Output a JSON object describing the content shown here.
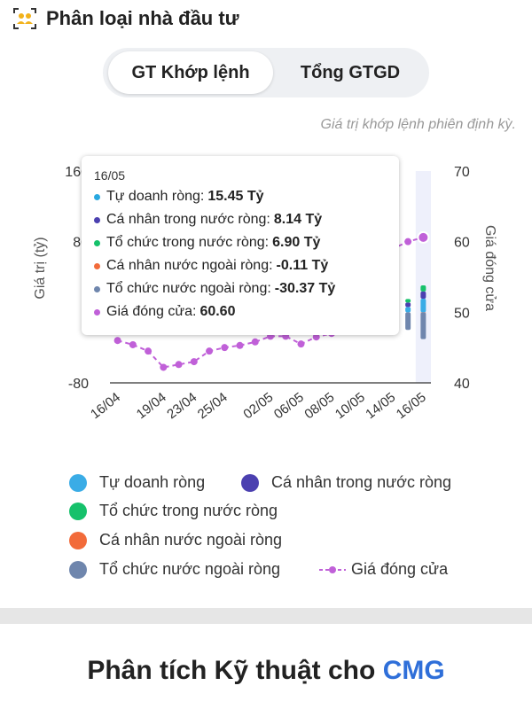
{
  "header": {
    "title": "Phân loại nhà đầu tư",
    "logo_icon": "investor-group-icon"
  },
  "tabs": [
    {
      "label": "GT Khớp lệnh",
      "active": true
    },
    {
      "label": "Tổng GTGD",
      "active": false
    }
  ],
  "subtitle": "Giá trị khớp lệnh phiên định kỳ.",
  "tooltip": {
    "date": "16/05",
    "rows": [
      {
        "label": "Tự doanh ròng:",
        "value": "15.45 Tỷ",
        "color": "#29a8e0"
      },
      {
        "label": "Cá nhân trong nước ròng:",
        "value": "8.14 Tỷ",
        "color": "#4b40b0"
      },
      {
        "label": "Tổ chức trong nước ròng:",
        "value": "6.90 Tỷ",
        "color": "#16c16b"
      },
      {
        "label": "Cá nhân nước ngoài ròng:",
        "value": "-0.11 Tỷ",
        "color": "#f26b3a"
      },
      {
        "label": "Tổ chức nước ngoài ròng:",
        "value": "-30.37 Tỷ",
        "color": "#6f86ad"
      },
      {
        "label": "Giá đóng cửa:",
        "value": "60.60",
        "color": "#c060d8"
      }
    ]
  },
  "legend": [
    {
      "label": "Tự doanh ròng",
      "color": "#3aace6",
      "kind": "dot"
    },
    {
      "label": "Cá nhân trong nước ròng",
      "color": "#4b40b0",
      "kind": "dot"
    },
    {
      "label": "Tổ chức trong nước ròng",
      "color": "#16c16b",
      "kind": "dot"
    },
    {
      "label": "Cá nhân nước ngoài ròng",
      "color": "#f26b3a",
      "kind": "dot"
    },
    {
      "label": "Tổ chức nước ngoài ròng",
      "color": "#6f86ad",
      "kind": "dot"
    },
    {
      "label": "Giá đóng cửa",
      "color": "#c060d8",
      "kind": "line"
    }
  ],
  "chart_data": {
    "type": "bar",
    "ylabel": "Giá trị (tỷ)",
    "y2label": "Giá đóng cửa",
    "ylim": [
      -80,
      160
    ],
    "y2lim": [
      40,
      70
    ],
    "y_ticks": [
      "160",
      "80",
      "-80"
    ],
    "y2_ticks": [
      "70",
      "60",
      "50",
      "40"
    ],
    "x_tick_labels": [
      "16/04",
      "19/04",
      "23/04",
      "25/04",
      "02/05",
      "06/05",
      "08/05",
      "10/05",
      "14/05",
      "16/05"
    ],
    "x": [
      "16/04",
      "17/04",
      "18/04",
      "19/04",
      "22/04",
      "23/04",
      "24/04",
      "25/04",
      "26/04",
      "29/04",
      "02/05",
      "03/05",
      "06/05",
      "07/05",
      "08/05",
      "09/05",
      "10/05",
      "13/05",
      "14/05",
      "15/05",
      "16/05"
    ],
    "series": [
      {
        "name": "Tự doanh ròng",
        "color": "#3aace6",
        "values": [
          0,
          0,
          0,
          0,
          0,
          0,
          0,
          0,
          0,
          0,
          0,
          0,
          0,
          0,
          0,
          0,
          0,
          0,
          6,
          6,
          15.45
        ]
      },
      {
        "name": "Cá nhân trong nước ròng",
        "color": "#4b40b0",
        "values": [
          0,
          0,
          0,
          0,
          0,
          0,
          0,
          0,
          0,
          0,
          0,
          0,
          0,
          0,
          0,
          0,
          0,
          0,
          4,
          5,
          8.14
        ]
      },
      {
        "name": "Tổ chức trong nước ròng",
        "color": "#16c16b",
        "values": [
          0,
          0,
          0,
          0,
          0,
          -7,
          0,
          0,
          0,
          0,
          0,
          0,
          0,
          0,
          0,
          0,
          0,
          0,
          3,
          4,
          6.9
        ]
      },
      {
        "name": "Cá nhân nước ngoài ròng",
        "color": "#f26b3a",
        "values": [
          0,
          0,
          0,
          0,
          0,
          0,
          0,
          0,
          0,
          0,
          0,
          0,
          0,
          0,
          0,
          0,
          0,
          0,
          0,
          0,
          -0.11
        ]
      },
      {
        "name": "Tổ chức nước ngoài ròng",
        "color": "#6f86ad",
        "values": [
          0,
          0,
          0,
          0,
          0,
          0,
          0,
          0,
          0,
          0,
          0,
          0,
          0,
          0,
          0,
          0,
          0,
          0,
          -15,
          -20,
          -30.37
        ]
      }
    ],
    "line": {
      "name": "Giá đóng cửa",
      "color": "#c060d8",
      "values": [
        46,
        45.4,
        44.5,
        42.2,
        42.6,
        43.0,
        44.5,
        45.0,
        45.3,
        45.8,
        46.6,
        46.6,
        45.5,
        46.5,
        47,
        47.5,
        48,
        49,
        59,
        60,
        60.6
      ]
    },
    "highlight": "16/05",
    "grid": false
  },
  "bottom": {
    "title_prefix": "Phân tích Kỹ thuật cho",
    "ticker": "CMG"
  }
}
